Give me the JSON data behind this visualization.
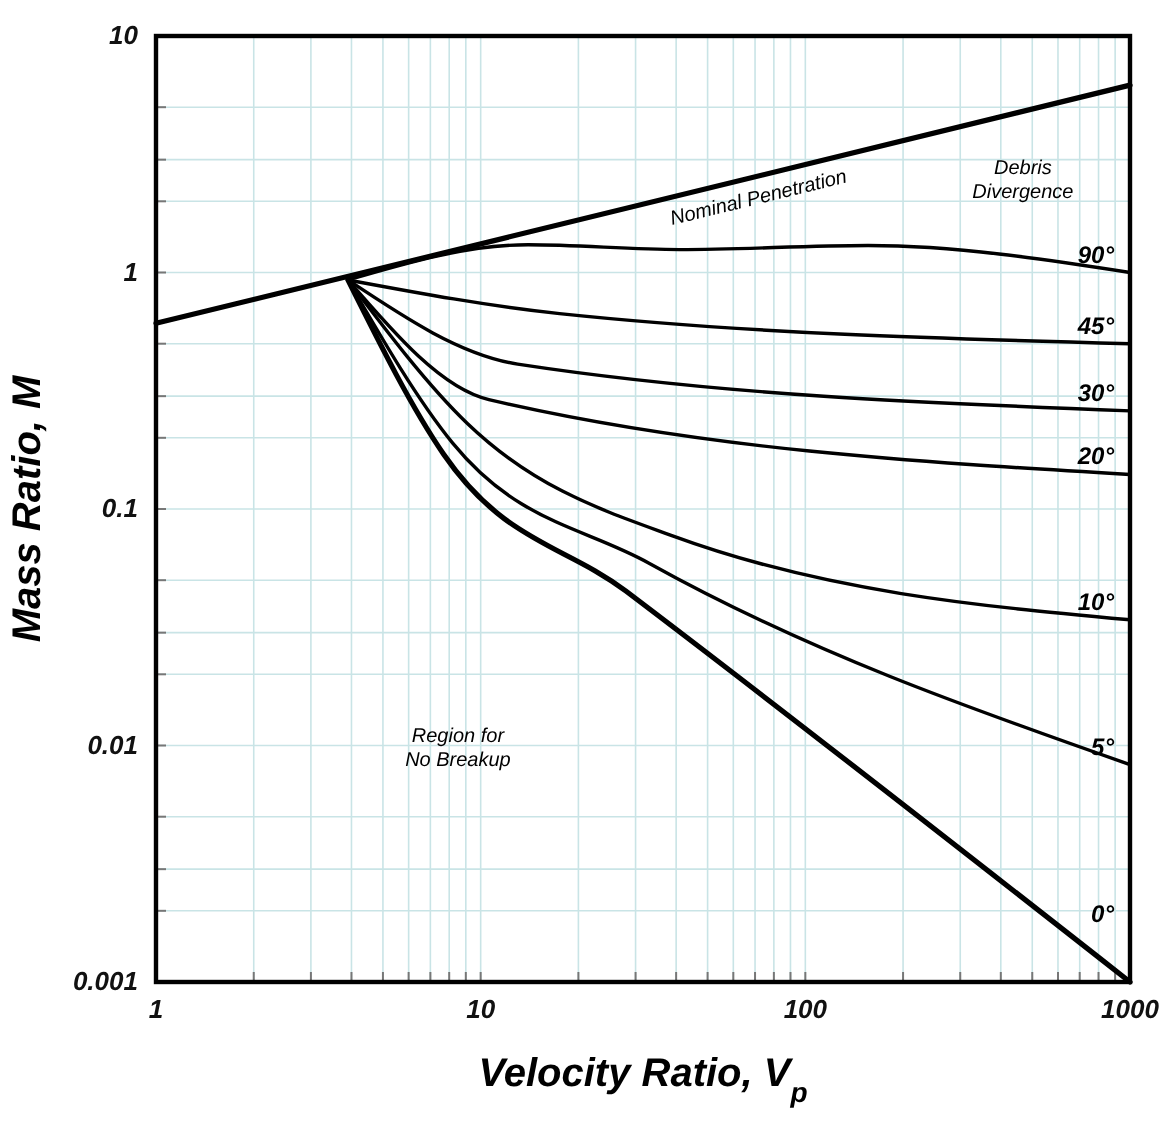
{
  "chart_data": {
    "type": "line",
    "xlabel": "Velocity Ratio, V$_{p}$",
    "ylabel": "Mass Ratio, M",
    "log": "xy",
    "grid": true,
    "xlim": [
      1,
      1000
    ],
    "ylim": [
      0.001,
      10
    ],
    "xticks": [
      1,
      {
        "value": 2,
        "label": null
      },
      {
        "value": 3,
        "label": null
      },
      {
        "value": 4,
        "label": null
      },
      {
        "value": 5,
        "label": null
      },
      {
        "value": 6,
        "label": null
      },
      {
        "value": 7,
        "label": null
      },
      {
        "value": 8,
        "label": null
      },
      {
        "value": 9,
        "label": null
      },
      10,
      {
        "value": 20,
        "label": null
      },
      {
        "value": 30,
        "label": null
      },
      {
        "value": 40,
        "label": null
      },
      {
        "value": 50,
        "label": null
      },
      {
        "value": 60,
        "label": null
      },
      {
        "value": 70,
        "label": null
      },
      {
        "value": 80,
        "label": null
      },
      {
        "value": 90,
        "label": null
      },
      100,
      {
        "value": 200,
        "label": null
      },
      {
        "value": 300,
        "label": null
      },
      {
        "value": 400,
        "label": null
      },
      {
        "value": 500,
        "label": null
      },
      {
        "value": 600,
        "label": null
      },
      {
        "value": 700,
        "label": null
      },
      {
        "value": 800,
        "label": null
      },
      {
        "value": 900,
        "label": null
      },
      1000
    ],
    "yticks": [
      0.001,
      {
        "value": 0.002,
        "label": null
      },
      {
        "value": 0.003,
        "label": null
      },
      {
        "value": 0.005,
        "label": null
      },
      0.01,
      {
        "value": 0.02,
        "label": null
      },
      {
        "value": 0.03,
        "label": null
      },
      {
        "value": 0.05,
        "label": null
      },
      0.1,
      {
        "value": 0.2,
        "label": null
      },
      {
        "value": 0.3,
        "label": null
      },
      {
        "value": 0.5,
        "label": null
      },
      1,
      {
        "value": 2,
        "label": null
      },
      {
        "value": 3,
        "label": null
      },
      {
        "value": 5,
        "label": null
      },
      10
    ],
    "series": [
      {
        "name": "Nominal Penetration",
        "color": "#000000",
        "x": [
          1,
          1000
        ],
        "values": [
          0.61,
          6.2
        ]
      },
      {
        "name": "90°",
        "color": "#000000",
        "x": [
          3.9,
          14,
          41,
          156,
          1000
        ],
        "values": [
          0.93,
          1.31,
          1.25,
          1.3,
          1.0
        ]
      },
      {
        "name": "45°",
        "color": "#000000",
        "x": [
          3.9,
          17.5,
          1000
        ],
        "values": [
          0.93,
          0.67,
          0.5
        ]
      },
      {
        "name": "30°",
        "color": "#000000",
        "x": [
          3.9,
          13,
          1000
        ],
        "values": [
          0.93,
          0.41,
          0.26
        ]
      },
      {
        "name": "20°",
        "color": "#000000",
        "x": [
          3.9,
          10.6,
          1000
        ],
        "values": [
          0.93,
          0.29,
          0.14
        ]
      },
      {
        "name": "10°",
        "color": "#000000",
        "x": [
          3.9,
          9.1,
          39,
          1000
        ],
        "values": [
          0.93,
          0.23,
          0.077,
          0.034
        ]
      },
      {
        "name": "5°",
        "color": "#000000",
        "x": [
          3.9,
          8.2,
          33,
          1000
        ],
        "values": [
          0.93,
          0.19,
          0.059,
          0.0083
        ]
      },
      {
        "name": "0°",
        "color": "#000000",
        "x": [
          3.9,
          7.7,
          28,
          1000
        ],
        "values": [
          0.93,
          0.17,
          0.045,
          0.001
        ]
      }
    ],
    "annotations": [
      "Region for No Breakup",
      "Debris Divergence"
    ]
  }
}
